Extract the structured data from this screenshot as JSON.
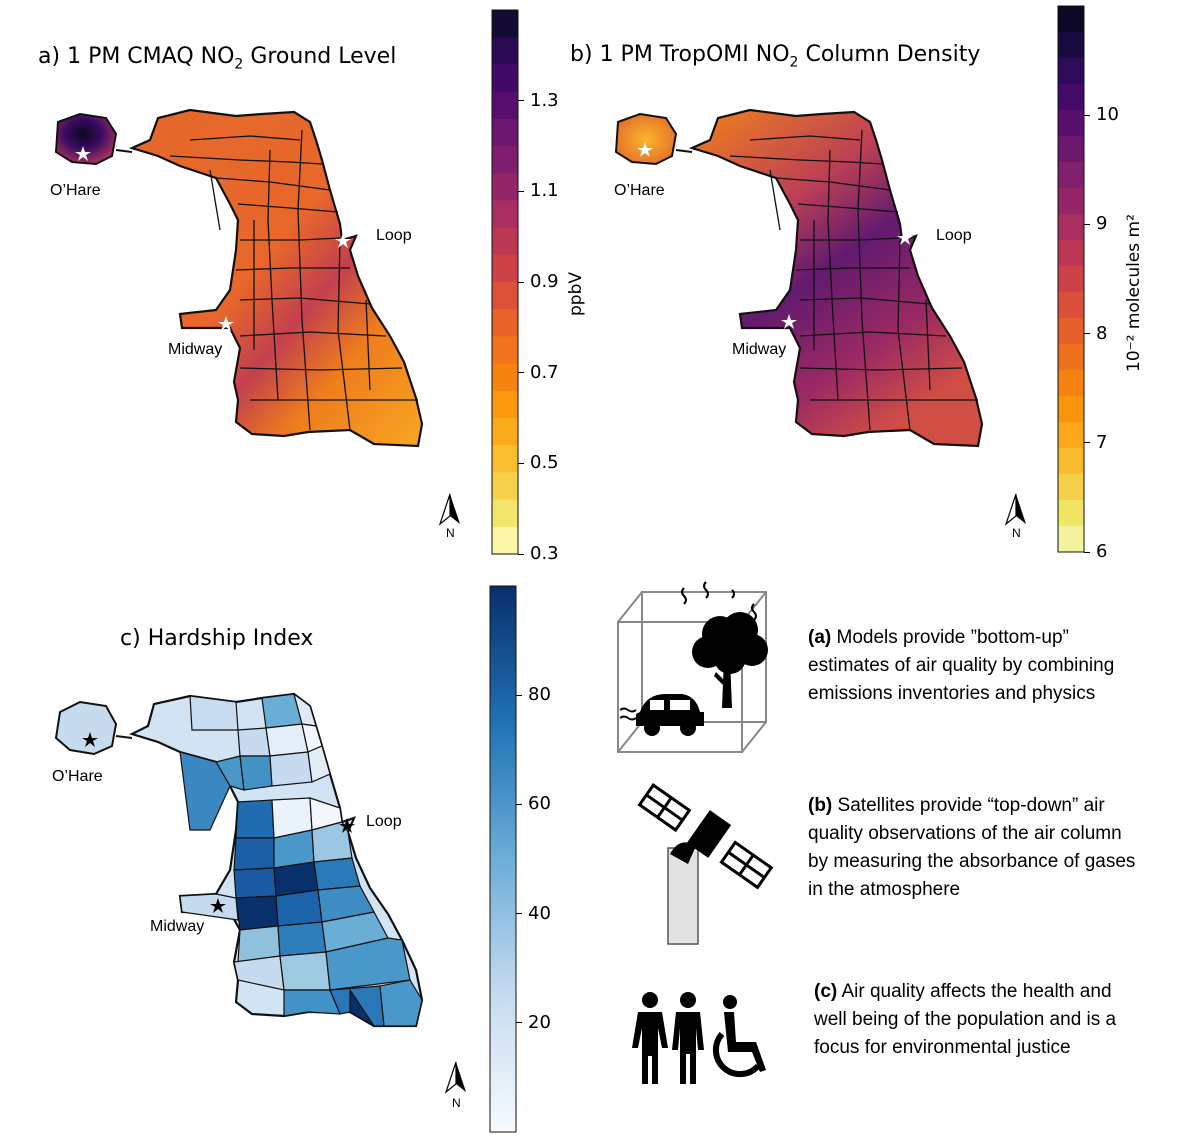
{
  "panels": {
    "a": {
      "label": "a)",
      "title_pre": "1 PM CMAQ NO",
      "title_sub": "2",
      "title_post": " Ground Level",
      "colorbar": {
        "label": "ppbV",
        "ticks": [
          "1.3",
          "1.1",
          "0.9",
          "0.7",
          "0.5",
          "0.3"
        ],
        "range": [
          0.3,
          1.5
        ],
        "colors": [
          "#140b34",
          "#2a0b53",
          "#420a68",
          "#570f6d",
          "#6b176e",
          "#7f1e6c",
          "#932667",
          "#a82e5f",
          "#bc3754",
          "#cd4246",
          "#dd513a",
          "#e8622a",
          "#f1731d",
          "#f78410",
          "#fa970b",
          "#fbaa1b",
          "#f9bd30",
          "#f5d14a",
          "#f1e56a",
          "#fcf6a8"
        ]
      },
      "places": {
        "ohare": "O’Hare",
        "loop": "Loop",
        "midway": "Midway"
      },
      "north": "N"
    },
    "b": {
      "label": "b)",
      "title_pre": "1 PM TropOMI NO",
      "title_sub": "2",
      "title_post": " Column Density",
      "colorbar": {
        "label": "10⁻² molecules m²",
        "ticks": [
          "10",
          "9",
          "8",
          "7",
          "6"
        ],
        "range": [
          6,
          11
        ],
        "colors": [
          "#0b0724",
          "#1a0b40",
          "#2e0a5a",
          "#440a68",
          "#580f6d",
          "#6c176e",
          "#801f6c",
          "#942667",
          "#a82e5f",
          "#bb3754",
          "#cc4248",
          "#db503b",
          "#e7602b",
          "#f0711e",
          "#f68212",
          "#f9940b",
          "#fba71a",
          "#f9ba2e",
          "#f5cf49",
          "#f2e465",
          "#f3f39e"
        ]
      },
      "places": {
        "ohare": "O’Hare",
        "loop": "Loop",
        "midway": "Midway"
      },
      "north": "N"
    },
    "c": {
      "label": "c)",
      "title": "Hardship Index",
      "colorbar": {
        "label": "",
        "ticks": [
          "80",
          "60",
          "40",
          "20"
        ],
        "range": [
          0,
          100
        ]
      },
      "places": {
        "ohare": "O’Hare",
        "loop": "Loop",
        "midway": "Midway"
      },
      "north": "N"
    }
  },
  "descriptions": [
    {
      "tag": "(a)",
      "text": " Models provide ”bottom-up” estimates of air quality by combining emissions inventories and physics",
      "icon": "model-box-icon"
    },
    {
      "tag": "(b)",
      "text": " Satellites provide “top-down” air quality observations of the air column by measuring the absorbance of gases in the atmosphere",
      "icon": "satellite-icon"
    },
    {
      "tag": "(c)",
      "text": " Air quality affects the health and well being of the population and is a focus for environmental justice",
      "icon": "people-icon"
    }
  ],
  "colors": {
    "border": "#111111",
    "hardship_dark": "#08306b",
    "hardship_light": "#f2f7fd"
  }
}
